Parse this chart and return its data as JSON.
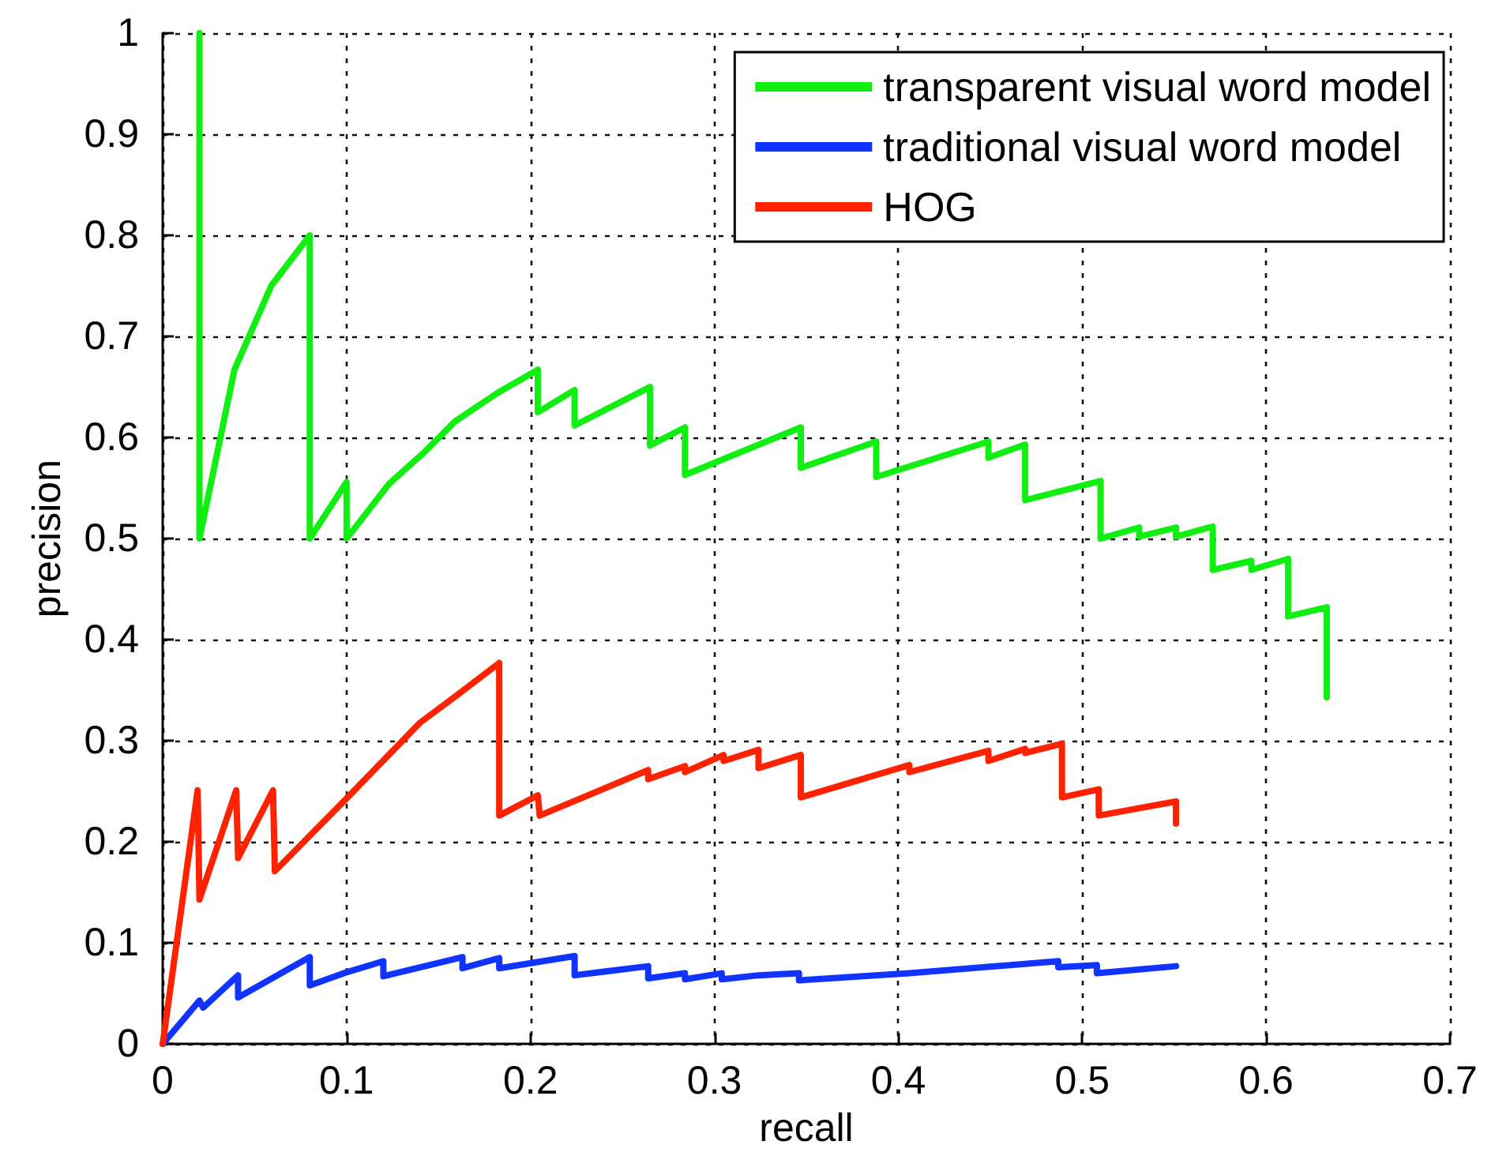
{
  "chart_data": {
    "type": "line",
    "xlabel": "recall",
    "ylabel": "precision",
    "xlim": [
      0,
      0.7
    ],
    "xticks": [
      0,
      0.1,
      0.2,
      0.3,
      0.4,
      0.5,
      0.6,
      0.7
    ],
    "ylim": [
      0,
      1
    ],
    "yticks": [
      0,
      0.1,
      0.2,
      0.3,
      0.4,
      0.5,
      0.6,
      0.7,
      0.8,
      0.9,
      1
    ],
    "grid": true,
    "legend": "top right",
    "marker": "none",
    "line_style": "solid",
    "series": [
      {
        "name": "transparent visual word model",
        "color": "#11ee11",
        "x": [
          0.02,
          0.02,
          0.039,
          0.059,
          0.08,
          0.08,
          0.1,
          0.1,
          0.123,
          0.142,
          0.159,
          0.182,
          0.204,
          0.204,
          0.224,
          0.224,
          0.265,
          0.265,
          0.284,
          0.284,
          0.347,
          0.347,
          0.388,
          0.388,
          0.449,
          0.449,
          0.469,
          0.469,
          0.51,
          0.51,
          0.531,
          0.531,
          0.551,
          0.551,
          0.571,
          0.571,
          0.592,
          0.592,
          0.612,
          0.612,
          0.633,
          0.633
        ],
        "values": [
          1,
          0.5,
          0.667,
          0.75,
          0.8,
          0.5,
          0.556,
          0.5,
          0.554,
          0.585,
          0.616,
          0.644,
          0.667,
          0.625,
          0.647,
          0.612,
          0.65,
          0.592,
          0.61,
          0.563,
          0.61,
          0.57,
          0.596,
          0.561,
          0.596,
          0.58,
          0.593,
          0.538,
          0.557,
          0.5,
          0.511,
          0.502,
          0.511,
          0.502,
          0.512,
          0.469,
          0.478,
          0.469,
          0.48,
          0.423,
          0.432,
          0.343
        ]
      },
      {
        "name": "traditional visual word model",
        "color": "#1133ff",
        "x": [
          0,
          0.02,
          0.022,
          0.041,
          0.041,
          0.08,
          0.08,
          0.1,
          0.12,
          0.12,
          0.163,
          0.163,
          0.183,
          0.183,
          0.224,
          0.224,
          0.264,
          0.264,
          0.284,
          0.284,
          0.304,
          0.304,
          0.324,
          0.346,
          0.346,
          0.406,
          0.487,
          0.487,
          0.508,
          0.508,
          0.551
        ],
        "values": [
          0,
          0.043,
          0.036,
          0.068,
          0.046,
          0.086,
          0.058,
          0.071,
          0.082,
          0.067,
          0.086,
          0.075,
          0.085,
          0.075,
          0.087,
          0.068,
          0.077,
          0.065,
          0.07,
          0.064,
          0.07,
          0.064,
          0.068,
          0.07,
          0.063,
          0.07,
          0.082,
          0.076,
          0.078,
          0.07,
          0.077
        ]
      },
      {
        "name": "HOG",
        "color": "#ff2200",
        "x": [
          0,
          0.019,
          0.02,
          0.04,
          0.041,
          0.06,
          0.061,
          0.1,
          0.14,
          0.16,
          0.183,
          0.183,
          0.204,
          0.205,
          0.264,
          0.264,
          0.284,
          0.284,
          0.305,
          0.305,
          0.324,
          0.324,
          0.347,
          0.347,
          0.406,
          0.406,
          0.449,
          0.449,
          0.469,
          0.469,
          0.489,
          0.489,
          0.509,
          0.509,
          0.551,
          0.551
        ],
        "values": [
          0,
          0.251,
          0.143,
          0.251,
          0.184,
          0.251,
          0.171,
          0.243,
          0.318,
          0.345,
          0.377,
          0.226,
          0.246,
          0.226,
          0.271,
          0.262,
          0.275,
          0.269,
          0.286,
          0.28,
          0.291,
          0.273,
          0.286,
          0.244,
          0.276,
          0.269,
          0.29,
          0.28,
          0.292,
          0.288,
          0.297,
          0.244,
          0.252,
          0.226,
          0.24,
          0.218
        ]
      }
    ]
  }
}
